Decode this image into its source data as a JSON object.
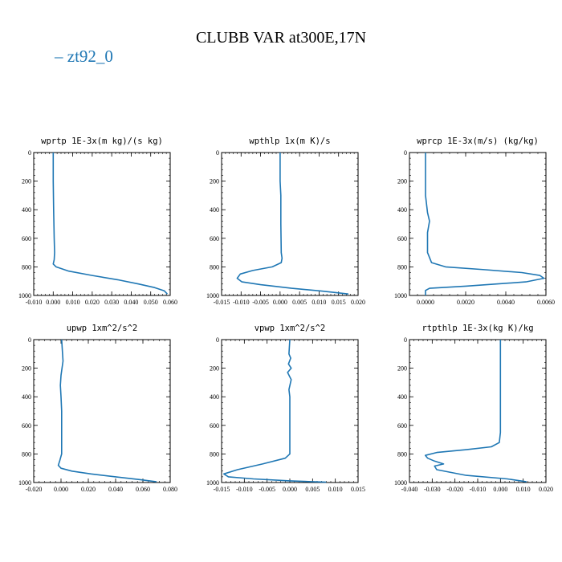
{
  "title": "CLUBB VAR at300E,17N",
  "legend": {
    "label": "zt92_0",
    "color": "#1f77b4"
  },
  "chart_data": [
    {
      "type": "line",
      "title": "wprtp  1E-3x(m kg)/(s kg)",
      "xlim": [
        -0.01,
        0.06
      ],
      "ylim": [
        0,
        1000
      ],
      "y_inverted": true,
      "xticks": [
        "-0.010",
        "0.000",
        "0.010",
        "0.020",
        "0.030",
        "0.040",
        "0.050",
        "0.060"
      ],
      "xtick_values": [
        -0.01,
        0,
        0.01,
        0.02,
        0.03,
        0.04,
        0.05,
        0.06
      ],
      "yticks": [
        "0",
        "200",
        "400",
        "600",
        "800",
        "1000"
      ],
      "series": [
        {
          "x": [
            0.0,
            0.0,
            0.0002,
            0.0005,
            0.0007,
            0.0005,
            0.0,
            0.0015,
            0.008,
            0.02,
            0.033,
            0.044,
            0.052,
            0.057,
            0.0585
          ],
          "y": [
            0,
            200,
            400,
            600,
            700,
            750,
            780,
            800,
            830,
            860,
            890,
            920,
            945,
            968,
            990
          ]
        }
      ]
    },
    {
      "type": "line",
      "title": "wpthlp  1x(m K)/s",
      "xlim": [
        -0.015,
        0.02
      ],
      "ylim": [
        0,
        1000
      ],
      "y_inverted": true,
      "xticks": [
        "-0.015",
        "-0.010",
        "-0.005",
        "0.000",
        "0.005",
        "0.010",
        "0.015",
        "0.020"
      ],
      "xtick_values": [
        -0.015,
        -0.01,
        -0.005,
        0,
        0.005,
        0.01,
        0.015,
        0.02
      ],
      "yticks": [
        "0",
        "200",
        "400",
        "600",
        "800",
        "1000"
      ],
      "series": [
        {
          "x": [
            0.0,
            0.0,
            0.0002,
            0.0002,
            0.0003,
            0.0005,
            0.0003,
            -0.002,
            -0.007,
            -0.0102,
            -0.011,
            -0.0098,
            -0.005,
            0.003,
            0.011,
            0.0175
          ],
          "y": [
            0,
            200,
            300,
            500,
            700,
            740,
            770,
            800,
            825,
            850,
            880,
            905,
            925,
            950,
            970,
            990
          ]
        }
      ]
    },
    {
      "type": "line",
      "title": "wprcp  1E-3x(m/s) (kg/kg)",
      "xlim": [
        -0.0008,
        0.006
      ],
      "ylim": [
        0,
        1000
      ],
      "y_inverted": true,
      "xticks": [
        "0.0000",
        "0.0020",
        "0.0040",
        "0.0060"
      ],
      "xtick_values": [
        0,
        0.002,
        0.004,
        0.006
      ],
      "yticks": [
        "0",
        "200",
        "400",
        "600",
        "800",
        "1000"
      ],
      "series": [
        {
          "x": [
            0.0,
            0.0,
            0.0001,
            0.0002,
            0.0001,
            0.0001,
            0.0003,
            0.001,
            0.003,
            0.0048,
            0.0057,
            0.0059,
            0.005,
            0.002,
            0.0002,
            0.0,
            0.0
          ],
          "y": [
            0,
            300,
            420,
            480,
            560,
            700,
            770,
            800,
            820,
            840,
            860,
            880,
            905,
            935,
            950,
            965,
            1000
          ]
        }
      ]
    },
    {
      "type": "line",
      "title": "upwp  1xm^2/s^2",
      "xlim": [
        -0.02,
        0.08
      ],
      "ylim": [
        0,
        1000
      ],
      "y_inverted": true,
      "xticks": [
        "-0.020",
        "0.000",
        "0.020",
        "0.040",
        "0.060",
        "0.080"
      ],
      "xtick_values": [
        -0.02,
        0,
        0.02,
        0.04,
        0.06,
        0.08
      ],
      "yticks": [
        "0",
        "200",
        "400",
        "600",
        "800",
        "1000"
      ],
      "series": [
        {
          "x": [
            0.0005,
            0.001,
            0.0015,
            0.0,
            -0.0005,
            0.0,
            0.0005,
            0.0005,
            0.0005,
            -0.001,
            -0.002,
            0.0,
            0.008,
            0.022,
            0.04,
            0.058,
            0.07
          ],
          "y": [
            0,
            80,
            150,
            250,
            320,
            400,
            500,
            600,
            800,
            850,
            880,
            900,
            920,
            940,
            960,
            980,
            995
          ]
        }
      ]
    },
    {
      "type": "line",
      "title": "vpwp  1xm^2/s^2",
      "xlim": [
        -0.015,
        0.015
      ],
      "ylim": [
        0,
        1000
      ],
      "y_inverted": true,
      "xticks": [
        "-0.015",
        "-0.010",
        "-0.005",
        "0.000",
        "0.005",
        "0.010",
        "0.015"
      ],
      "xtick_values": [
        -0.015,
        -0.01,
        -0.005,
        0,
        0.005,
        0.01,
        0.015
      ],
      "yticks": [
        "0",
        "200",
        "400",
        "600",
        "800",
        "1000"
      ],
      "series": [
        {
          "x": [
            0.0,
            -0.0002,
            0.0002,
            -0.0003,
            0.0003,
            -0.0005,
            0.0003,
            -0.0002,
            0.0,
            0.0,
            0.0,
            -0.001,
            -0.006,
            -0.0115,
            -0.0145,
            -0.0135,
            -0.008,
            0.0,
            0.008
          ],
          "y": [
            0,
            100,
            130,
            170,
            200,
            230,
            280,
            350,
            400,
            600,
            800,
            830,
            870,
            910,
            940,
            960,
            975,
            988,
            998
          ]
        }
      ]
    },
    {
      "type": "line",
      "title": "rtpthlp  1E-3x(kg K)/kg",
      "xlim": [
        -0.04,
        0.02
      ],
      "ylim": [
        0,
        1000
      ],
      "y_inverted": true,
      "xticks": [
        "-0.040",
        "-0.030",
        "-0.020",
        "-0.010",
        "0.000",
        "0.010",
        "0.020"
      ],
      "xtick_values": [
        -0.04,
        -0.03,
        -0.02,
        -0.01,
        0,
        0.01,
        0.02
      ],
      "yticks": [
        "0",
        "200",
        "400",
        "600",
        "800",
        "1000"
      ],
      "series": [
        {
          "x": [
            0.0,
            0.0,
            0.0,
            0.0,
            -0.0005,
            -0.004,
            -0.015,
            -0.028,
            -0.033,
            -0.032,
            -0.029,
            -0.025,
            -0.029,
            -0.028,
            -0.015,
            0.003,
            0.0115
          ],
          "y": [
            0,
            300,
            500,
            650,
            720,
            750,
            770,
            790,
            810,
            830,
            850,
            870,
            885,
            910,
            950,
            975,
            995
          ]
        }
      ]
    }
  ]
}
